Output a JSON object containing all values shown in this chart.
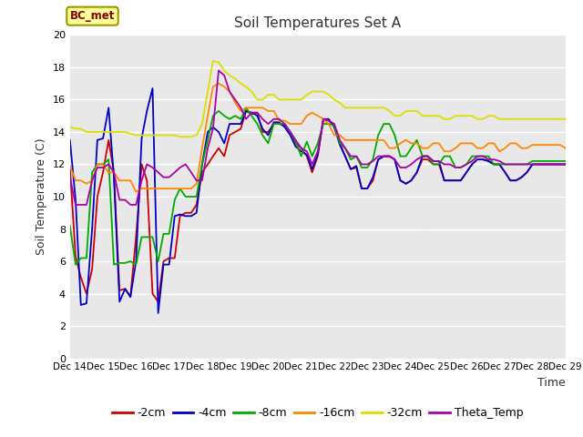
{
  "title": "Soil Temperatures Set A",
  "xlabel": "Time",
  "ylabel": "Soil Temperature (C)",
  "ylim": [
    0,
    20
  ],
  "annotation": "BC_met",
  "plot_bg": "#e8e8e8",
  "fig_bg": "#ffffff",
  "grid_color": "#ffffff",
  "series": {
    "-2cm": {
      "color": "#cc0000",
      "x": [
        0,
        0.17,
        0.33,
        0.5,
        0.67,
        0.83,
        1.0,
        1.17,
        1.33,
        1.5,
        1.67,
        1.83,
        2.0,
        2.17,
        2.33,
        2.5,
        2.67,
        2.83,
        3.0,
        3.17,
        3.33,
        3.5,
        3.67,
        3.83,
        4.0,
        4.17,
        4.33,
        4.5,
        4.67,
        4.83,
        5.0,
        5.17,
        5.33,
        5.5,
        5.67,
        5.83,
        6.0,
        6.17,
        6.33,
        6.5,
        6.67,
        6.83,
        7.0,
        7.17,
        7.33,
        7.5,
        7.67,
        7.83,
        8.0,
        8.17,
        8.33,
        8.5,
        8.67,
        8.83,
        9.0,
        9.17,
        9.33,
        9.5,
        9.67,
        9.83,
        10.0,
        10.17,
        10.33,
        10.5,
        10.67,
        10.83,
        11.0,
        11.17,
        11.33,
        11.5,
        11.67,
        11.83,
        12.0,
        12.17,
        12.33,
        12.5,
        12.67,
        12.83,
        13.0,
        13.17,
        13.33,
        13.5,
        13.67,
        13.83,
        14.0,
        14.17,
        14.33,
        14.5,
        14.67,
        14.83,
        15.0
      ],
      "y": [
        11.8,
        6.3,
        5.0,
        4.0,
        5.5,
        10.0,
        11.5,
        13.5,
        11.5,
        4.2,
        4.3,
        3.8,
        7.5,
        12.0,
        11.0,
        4.0,
        3.5,
        6.0,
        6.2,
        6.2,
        8.8,
        9.0,
        9.0,
        9.5,
        11.5,
        12.0,
        12.5,
        13.0,
        12.5,
        13.8,
        14.0,
        14.2,
        15.3,
        15.1,
        15.2,
        14.0,
        14.0,
        14.5,
        14.5,
        14.4,
        14.0,
        13.3,
        13.0,
        12.5,
        11.5,
        12.5,
        14.8,
        14.7,
        14.4,
        13.3,
        12.5,
        11.7,
        11.8,
        10.5,
        10.5,
        11.0,
        12.3,
        12.5,
        12.5,
        12.3,
        11.0,
        10.8,
        11.0,
        11.5,
        12.3,
        12.3,
        12.0,
        12.0,
        11.0,
        11.0,
        11.0,
        11.0,
        11.5,
        12.0,
        12.3,
        12.3,
        12.2,
        12.0,
        12.0,
        11.5,
        11.0,
        11.0,
        11.2,
        11.5,
        12.0,
        12.0,
        12.0,
        12.0,
        12.0,
        12.0,
        12.0
      ]
    },
    "-4cm": {
      "color": "#0000cc",
      "x": [
        0,
        0.17,
        0.33,
        0.5,
        0.67,
        0.83,
        1.0,
        1.17,
        1.33,
        1.5,
        1.67,
        1.83,
        2.0,
        2.17,
        2.33,
        2.5,
        2.67,
        2.83,
        3.0,
        3.17,
        3.33,
        3.5,
        3.67,
        3.83,
        4.0,
        4.17,
        4.33,
        4.5,
        4.67,
        4.83,
        5.0,
        5.17,
        5.33,
        5.5,
        5.67,
        5.83,
        6.0,
        6.17,
        6.33,
        6.5,
        6.67,
        6.83,
        7.0,
        7.17,
        7.33,
        7.5,
        7.67,
        7.83,
        8.0,
        8.17,
        8.33,
        8.5,
        8.67,
        8.83,
        9.0,
        9.17,
        9.33,
        9.5,
        9.67,
        9.83,
        10.0,
        10.17,
        10.33,
        10.5,
        10.67,
        10.83,
        11.0,
        11.17,
        11.33,
        11.5,
        11.67,
        11.83,
        12.0,
        12.17,
        12.33,
        12.5,
        12.67,
        12.83,
        13.0,
        13.17,
        13.33,
        13.5,
        13.67,
        13.83,
        14.0,
        14.17,
        14.33,
        14.5,
        14.67,
        14.83,
        15.0
      ],
      "y": [
        13.5,
        9.8,
        3.3,
        3.4,
        8.0,
        13.5,
        13.6,
        15.5,
        11.2,
        3.5,
        4.3,
        3.8,
        6.0,
        13.6,
        15.3,
        16.7,
        2.8,
        5.8,
        5.8,
        8.8,
        8.9,
        8.8,
        8.8,
        9.0,
        12.0,
        14.0,
        14.3,
        14.0,
        13.3,
        14.5,
        14.5,
        14.5,
        15.3,
        15.2,
        15.0,
        14.2,
        13.8,
        14.6,
        14.6,
        14.3,
        13.8,
        13.1,
        12.8,
        12.6,
        11.7,
        12.6,
        14.8,
        14.8,
        14.3,
        13.2,
        12.5,
        11.7,
        11.9,
        10.5,
        10.5,
        11.2,
        12.3,
        12.5,
        12.5,
        12.3,
        11.0,
        10.8,
        11.0,
        11.5,
        12.5,
        12.5,
        12.2,
        12.2,
        11.0,
        11.0,
        11.0,
        11.0,
        11.5,
        12.0,
        12.3,
        12.3,
        12.2,
        12.0,
        12.0,
        11.5,
        11.0,
        11.0,
        11.2,
        11.5,
        12.0,
        12.0,
        12.0,
        12.0,
        12.0,
        12.0,
        12.0
      ]
    },
    "-8cm": {
      "color": "#00aa00",
      "x": [
        0,
        0.17,
        0.33,
        0.5,
        0.67,
        0.83,
        1.0,
        1.17,
        1.33,
        1.5,
        1.67,
        1.83,
        2.0,
        2.17,
        2.33,
        2.5,
        2.67,
        2.83,
        3.0,
        3.17,
        3.33,
        3.5,
        3.67,
        3.83,
        4.0,
        4.17,
        4.33,
        4.5,
        4.67,
        4.83,
        5.0,
        5.17,
        5.33,
        5.5,
        5.67,
        5.83,
        6.0,
        6.17,
        6.33,
        6.5,
        6.67,
        6.83,
        7.0,
        7.17,
        7.33,
        7.5,
        7.67,
        7.83,
        8.0,
        8.17,
        8.33,
        8.5,
        8.67,
        8.83,
        9.0,
        9.17,
        9.33,
        9.5,
        9.67,
        9.83,
        10.0,
        10.17,
        10.33,
        10.5,
        10.67,
        10.83,
        11.0,
        11.17,
        11.33,
        11.5,
        11.67,
        11.83,
        12.0,
        12.17,
        12.33,
        12.5,
        12.67,
        12.83,
        13.0,
        13.17,
        13.33,
        13.5,
        13.67,
        13.83,
        14.0,
        14.17,
        14.33,
        14.5,
        14.67,
        14.83,
        15.0
      ],
      "y": [
        8.2,
        5.8,
        6.2,
        6.2,
        11.5,
        12.0,
        12.0,
        12.3,
        5.8,
        5.9,
        5.9,
        6.0,
        5.8,
        7.5,
        7.5,
        7.5,
        6.0,
        7.7,
        7.7,
        9.8,
        10.5,
        10.0,
        10.0,
        10.0,
        12.0,
        13.5,
        15.0,
        15.3,
        15.0,
        14.8,
        15.0,
        14.8,
        15.5,
        15.0,
        14.5,
        13.8,
        13.3,
        14.5,
        14.5,
        14.5,
        14.0,
        13.4,
        12.5,
        13.4,
        12.5,
        13.3,
        14.5,
        14.5,
        14.4,
        13.3,
        13.0,
        12.3,
        12.5,
        11.8,
        11.8,
        12.3,
        13.8,
        14.5,
        14.5,
        13.8,
        12.5,
        12.5,
        13.0,
        13.5,
        12.5,
        12.5,
        12.0,
        12.0,
        12.5,
        12.5,
        11.8,
        11.8,
        12.0,
        12.5,
        12.5,
        12.5,
        12.5,
        12.0,
        12.0,
        12.0,
        12.0,
        12.0,
        12.0,
        12.0,
        12.2,
        12.2,
        12.2,
        12.2,
        12.2,
        12.2,
        12.2
      ]
    },
    "-16cm": {
      "color": "#ff8800",
      "x": [
        0,
        0.17,
        0.33,
        0.5,
        0.67,
        0.83,
        1.0,
        1.17,
        1.33,
        1.5,
        1.67,
        1.83,
        2.0,
        2.17,
        2.33,
        2.5,
        2.67,
        2.83,
        3.0,
        3.17,
        3.33,
        3.5,
        3.67,
        3.83,
        4.0,
        4.17,
        4.33,
        4.5,
        4.67,
        4.83,
        5.0,
        5.17,
        5.33,
        5.5,
        5.67,
        5.83,
        6.0,
        6.17,
        6.33,
        6.5,
        6.67,
        6.83,
        7.0,
        7.17,
        7.33,
        7.5,
        7.67,
        7.83,
        8.0,
        8.17,
        8.33,
        8.5,
        8.67,
        8.83,
        9.0,
        9.17,
        9.33,
        9.5,
        9.67,
        9.83,
        10.0,
        10.17,
        10.33,
        10.5,
        10.67,
        10.83,
        11.0,
        11.17,
        11.33,
        11.5,
        11.67,
        11.83,
        12.0,
        12.17,
        12.33,
        12.5,
        12.67,
        12.83,
        13.0,
        13.17,
        13.33,
        13.5,
        13.67,
        13.83,
        14.0,
        14.17,
        14.33,
        14.5,
        14.67,
        14.83,
        15.0
      ],
      "y": [
        11.9,
        11.0,
        11.0,
        10.8,
        11.0,
        12.0,
        12.0,
        11.5,
        11.5,
        11.0,
        11.0,
        11.0,
        10.3,
        10.5,
        10.5,
        10.5,
        10.5,
        10.5,
        10.5,
        10.5,
        10.5,
        10.5,
        10.5,
        10.8,
        13.0,
        15.0,
        16.8,
        17.0,
        16.8,
        16.5,
        15.8,
        15.3,
        15.5,
        15.5,
        15.5,
        15.5,
        15.3,
        15.3,
        14.7,
        14.7,
        14.5,
        14.5,
        14.5,
        15.0,
        15.2,
        15.0,
        14.8,
        14.5,
        13.8,
        13.8,
        13.5,
        13.5,
        13.5,
        13.5,
        13.5,
        13.5,
        13.5,
        13.5,
        13.0,
        13.0,
        13.3,
        13.5,
        13.3,
        13.3,
        13.0,
        13.0,
        13.3,
        13.3,
        12.8,
        12.8,
        13.0,
        13.3,
        13.3,
        13.3,
        13.0,
        13.0,
        13.3,
        13.3,
        12.8,
        13.0,
        13.3,
        13.3,
        13.0,
        13.0,
        13.2,
        13.2,
        13.2,
        13.2,
        13.2,
        13.2,
        13.0
      ]
    },
    "-32cm": {
      "color": "#dddd00",
      "x": [
        0,
        0.17,
        0.33,
        0.5,
        0.67,
        0.83,
        1.0,
        1.17,
        1.33,
        1.5,
        1.67,
        1.83,
        2.0,
        2.17,
        2.33,
        2.5,
        2.67,
        2.83,
        3.0,
        3.17,
        3.33,
        3.5,
        3.67,
        3.83,
        4.0,
        4.17,
        4.33,
        4.5,
        4.67,
        4.83,
        5.0,
        5.17,
        5.33,
        5.5,
        5.67,
        5.83,
        6.0,
        6.17,
        6.33,
        6.5,
        6.67,
        6.83,
        7.0,
        7.17,
        7.33,
        7.5,
        7.67,
        7.83,
        8.0,
        8.17,
        8.33,
        8.5,
        8.67,
        8.83,
        9.0,
        9.17,
        9.33,
        9.5,
        9.67,
        9.83,
        10.0,
        10.17,
        10.33,
        10.5,
        10.67,
        10.83,
        11.0,
        11.17,
        11.33,
        11.5,
        11.67,
        11.83,
        12.0,
        12.17,
        12.33,
        12.5,
        12.67,
        12.83,
        13.0,
        13.17,
        13.33,
        13.5,
        13.67,
        13.83,
        14.0,
        14.17,
        14.33,
        14.5,
        14.67,
        14.83,
        15.0
      ],
      "y": [
        14.3,
        14.2,
        14.2,
        14.0,
        14.0,
        14.0,
        14.0,
        14.0,
        14.0,
        14.0,
        14.0,
        13.9,
        13.8,
        13.8,
        13.8,
        13.8,
        13.8,
        13.8,
        13.8,
        13.8,
        13.7,
        13.7,
        13.7,
        13.8,
        14.5,
        16.5,
        18.4,
        18.3,
        17.8,
        17.5,
        17.3,
        17.0,
        16.8,
        16.5,
        16.0,
        16.0,
        16.3,
        16.3,
        16.0,
        16.0,
        16.0,
        16.0,
        16.0,
        16.3,
        16.5,
        16.5,
        16.5,
        16.3,
        16.0,
        15.8,
        15.5,
        15.5,
        15.5,
        15.5,
        15.5,
        15.5,
        15.5,
        15.5,
        15.3,
        15.0,
        15.0,
        15.3,
        15.3,
        15.3,
        15.0,
        15.0,
        15.0,
        15.0,
        14.8,
        14.8,
        15.0,
        15.0,
        15.0,
        15.0,
        14.8,
        14.8,
        15.0,
        15.0,
        14.8,
        14.8,
        14.8,
        14.8,
        14.8,
        14.8,
        14.8,
        14.8,
        14.8,
        14.8,
        14.8,
        14.8,
        14.8
      ]
    },
    "Theta_Temp": {
      "color": "#aa00aa",
      "x": [
        0,
        0.17,
        0.33,
        0.5,
        0.67,
        0.83,
        1.0,
        1.17,
        1.33,
        1.5,
        1.67,
        1.83,
        2.0,
        2.17,
        2.33,
        2.5,
        2.67,
        2.83,
        3.0,
        3.17,
        3.33,
        3.5,
        3.67,
        3.83,
        4.0,
        4.17,
        4.33,
        4.5,
        4.67,
        4.83,
        5.0,
        5.17,
        5.33,
        5.5,
        5.67,
        5.83,
        6.0,
        6.17,
        6.33,
        6.5,
        6.67,
        6.83,
        7.0,
        7.17,
        7.33,
        7.5,
        7.67,
        7.83,
        8.0,
        8.17,
        8.33,
        8.5,
        8.67,
        8.83,
        9.0,
        9.17,
        9.33,
        9.5,
        9.67,
        9.83,
        10.0,
        10.17,
        10.33,
        10.5,
        10.67,
        10.83,
        11.0,
        11.17,
        11.33,
        11.5,
        11.67,
        11.83,
        12.0,
        12.17,
        12.33,
        12.5,
        12.67,
        12.83,
        13.0,
        13.17,
        13.33,
        13.5,
        13.67,
        13.83,
        14.0,
        14.17,
        14.33,
        14.5,
        14.67,
        14.83,
        15.0
      ],
      "y": [
        11.2,
        9.5,
        9.5,
        9.5,
        11.0,
        11.8,
        11.8,
        12.0,
        11.5,
        9.8,
        9.8,
        9.5,
        9.5,
        11.0,
        12.0,
        11.8,
        11.5,
        11.2,
        11.2,
        11.5,
        11.8,
        12.0,
        11.5,
        11.0,
        11.0,
        13.0,
        14.2,
        17.8,
        17.5,
        16.5,
        16.0,
        15.5,
        14.8,
        15.2,
        15.2,
        14.8,
        14.5,
        14.8,
        14.8,
        14.5,
        14.0,
        13.5,
        13.0,
        12.8,
        12.0,
        12.8,
        14.8,
        14.7,
        14.5,
        13.5,
        13.0,
        12.5,
        12.5,
        12.0,
        12.0,
        12.2,
        12.5,
        12.5,
        12.5,
        12.3,
        11.8,
        11.8,
        12.0,
        12.3,
        12.5,
        12.5,
        12.2,
        12.2,
        12.0,
        12.0,
        11.8,
        11.8,
        12.0,
        12.2,
        12.5,
        12.5,
        12.3,
        12.3,
        12.2,
        12.0,
        12.0,
        12.0,
        12.0,
        12.0,
        12.0,
        12.0,
        12.0,
        12.0,
        12.0,
        12.0,
        12.0
      ]
    }
  },
  "xtick_labels": [
    "Dec 14",
    "Dec 15",
    "Dec 16",
    "Dec 17",
    "Dec 18",
    "Dec 19",
    "Dec 20",
    "Dec 21",
    "Dec 22",
    "Dec 23",
    "Dec 24",
    "Dec 25",
    "Dec 26",
    "Dec 27",
    "Dec 28",
    "Dec 29"
  ],
  "xtick_positions": [
    0,
    1,
    2,
    3,
    4,
    5,
    6,
    7,
    8,
    9,
    10,
    11,
    12,
    13,
    14,
    15
  ],
  "legend_order": [
    "-2cm",
    "-4cm",
    "-8cm",
    "-16cm",
    "-32cm",
    "Theta_Temp"
  ],
  "legend_colors": [
    "#cc0000",
    "#0000cc",
    "#00aa00",
    "#ff8800",
    "#dddd00",
    "#aa00aa"
  ]
}
